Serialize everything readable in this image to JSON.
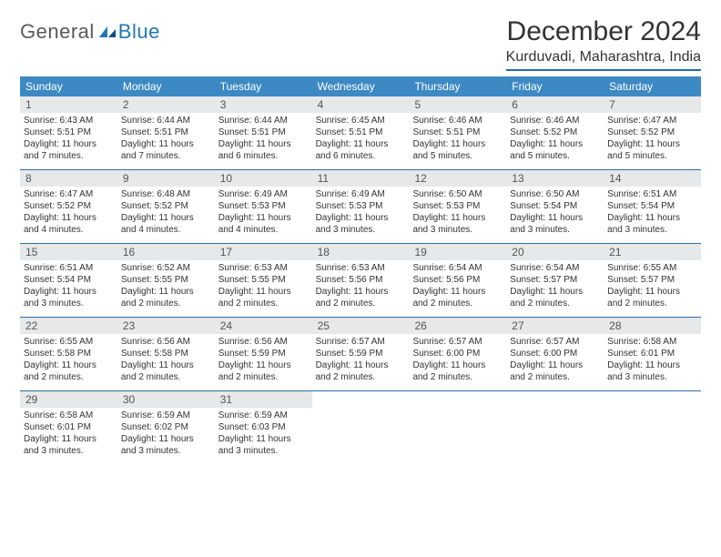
{
  "logo": {
    "word1": "General",
    "word2": "Blue"
  },
  "title": "December 2024",
  "location": "Kurduvadi, Maharashtra, India",
  "colors": {
    "header_bg": "#3d89c3",
    "header_text": "#ffffff",
    "daynum_bg": "#e6e8ea",
    "daynum_text": "#555555",
    "rule": "#2f6f9e",
    "body_text": "#333333",
    "logo_gray": "#5a5a5a",
    "logo_blue": "#1f77b4"
  },
  "dow": [
    "Sunday",
    "Monday",
    "Tuesday",
    "Wednesday",
    "Thursday",
    "Friday",
    "Saturday"
  ],
  "weeks": [
    [
      {
        "n": "1",
        "sr": "Sunrise: 6:43 AM",
        "ss": "Sunset: 5:51 PM",
        "dl": "Daylight: 11 hours and 7 minutes."
      },
      {
        "n": "2",
        "sr": "Sunrise: 6:44 AM",
        "ss": "Sunset: 5:51 PM",
        "dl": "Daylight: 11 hours and 7 minutes."
      },
      {
        "n": "3",
        "sr": "Sunrise: 6:44 AM",
        "ss": "Sunset: 5:51 PM",
        "dl": "Daylight: 11 hours and 6 minutes."
      },
      {
        "n": "4",
        "sr": "Sunrise: 6:45 AM",
        "ss": "Sunset: 5:51 PM",
        "dl": "Daylight: 11 hours and 6 minutes."
      },
      {
        "n": "5",
        "sr": "Sunrise: 6:46 AM",
        "ss": "Sunset: 5:51 PM",
        "dl": "Daylight: 11 hours and 5 minutes."
      },
      {
        "n": "6",
        "sr": "Sunrise: 6:46 AM",
        "ss": "Sunset: 5:52 PM",
        "dl": "Daylight: 11 hours and 5 minutes."
      },
      {
        "n": "7",
        "sr": "Sunrise: 6:47 AM",
        "ss": "Sunset: 5:52 PM",
        "dl": "Daylight: 11 hours and 5 minutes."
      }
    ],
    [
      {
        "n": "8",
        "sr": "Sunrise: 6:47 AM",
        "ss": "Sunset: 5:52 PM",
        "dl": "Daylight: 11 hours and 4 minutes."
      },
      {
        "n": "9",
        "sr": "Sunrise: 6:48 AM",
        "ss": "Sunset: 5:52 PM",
        "dl": "Daylight: 11 hours and 4 minutes."
      },
      {
        "n": "10",
        "sr": "Sunrise: 6:49 AM",
        "ss": "Sunset: 5:53 PM",
        "dl": "Daylight: 11 hours and 4 minutes."
      },
      {
        "n": "11",
        "sr": "Sunrise: 6:49 AM",
        "ss": "Sunset: 5:53 PM",
        "dl": "Daylight: 11 hours and 3 minutes."
      },
      {
        "n": "12",
        "sr": "Sunrise: 6:50 AM",
        "ss": "Sunset: 5:53 PM",
        "dl": "Daylight: 11 hours and 3 minutes."
      },
      {
        "n": "13",
        "sr": "Sunrise: 6:50 AM",
        "ss": "Sunset: 5:54 PM",
        "dl": "Daylight: 11 hours and 3 minutes."
      },
      {
        "n": "14",
        "sr": "Sunrise: 6:51 AM",
        "ss": "Sunset: 5:54 PM",
        "dl": "Daylight: 11 hours and 3 minutes."
      }
    ],
    [
      {
        "n": "15",
        "sr": "Sunrise: 6:51 AM",
        "ss": "Sunset: 5:54 PM",
        "dl": "Daylight: 11 hours and 3 minutes."
      },
      {
        "n": "16",
        "sr": "Sunrise: 6:52 AM",
        "ss": "Sunset: 5:55 PM",
        "dl": "Daylight: 11 hours and 2 minutes."
      },
      {
        "n": "17",
        "sr": "Sunrise: 6:53 AM",
        "ss": "Sunset: 5:55 PM",
        "dl": "Daylight: 11 hours and 2 minutes."
      },
      {
        "n": "18",
        "sr": "Sunrise: 6:53 AM",
        "ss": "Sunset: 5:56 PM",
        "dl": "Daylight: 11 hours and 2 minutes."
      },
      {
        "n": "19",
        "sr": "Sunrise: 6:54 AM",
        "ss": "Sunset: 5:56 PM",
        "dl": "Daylight: 11 hours and 2 minutes."
      },
      {
        "n": "20",
        "sr": "Sunrise: 6:54 AM",
        "ss": "Sunset: 5:57 PM",
        "dl": "Daylight: 11 hours and 2 minutes."
      },
      {
        "n": "21",
        "sr": "Sunrise: 6:55 AM",
        "ss": "Sunset: 5:57 PM",
        "dl": "Daylight: 11 hours and 2 minutes."
      }
    ],
    [
      {
        "n": "22",
        "sr": "Sunrise: 6:55 AM",
        "ss": "Sunset: 5:58 PM",
        "dl": "Daylight: 11 hours and 2 minutes."
      },
      {
        "n": "23",
        "sr": "Sunrise: 6:56 AM",
        "ss": "Sunset: 5:58 PM",
        "dl": "Daylight: 11 hours and 2 minutes."
      },
      {
        "n": "24",
        "sr": "Sunrise: 6:56 AM",
        "ss": "Sunset: 5:59 PM",
        "dl": "Daylight: 11 hours and 2 minutes."
      },
      {
        "n": "25",
        "sr": "Sunrise: 6:57 AM",
        "ss": "Sunset: 5:59 PM",
        "dl": "Daylight: 11 hours and 2 minutes."
      },
      {
        "n": "26",
        "sr": "Sunrise: 6:57 AM",
        "ss": "Sunset: 6:00 PM",
        "dl": "Daylight: 11 hours and 2 minutes."
      },
      {
        "n": "27",
        "sr": "Sunrise: 6:57 AM",
        "ss": "Sunset: 6:00 PM",
        "dl": "Daylight: 11 hours and 2 minutes."
      },
      {
        "n": "28",
        "sr": "Sunrise: 6:58 AM",
        "ss": "Sunset: 6:01 PM",
        "dl": "Daylight: 11 hours and 3 minutes."
      }
    ],
    [
      {
        "n": "29",
        "sr": "Sunrise: 6:58 AM",
        "ss": "Sunset: 6:01 PM",
        "dl": "Daylight: 11 hours and 3 minutes."
      },
      {
        "n": "30",
        "sr": "Sunrise: 6:59 AM",
        "ss": "Sunset: 6:02 PM",
        "dl": "Daylight: 11 hours and 3 minutes."
      },
      {
        "n": "31",
        "sr": "Sunrise: 6:59 AM",
        "ss": "Sunset: 6:03 PM",
        "dl": "Daylight: 11 hours and 3 minutes."
      },
      {
        "empty": true
      },
      {
        "empty": true
      },
      {
        "empty": true
      },
      {
        "empty": true
      }
    ]
  ]
}
